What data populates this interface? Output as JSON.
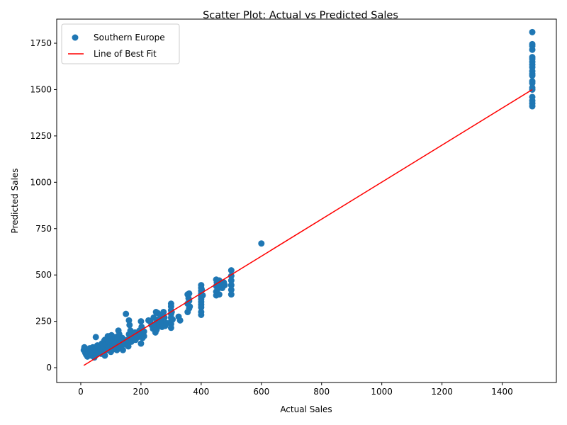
{
  "chart_data": {
    "type": "scatter",
    "title": "Scatter Plot: Actual vs Predicted Sales",
    "xlabel": "Actual Sales",
    "ylabel": "Predicted Sales",
    "xlim": [
      -80,
      1580
    ],
    "ylim": [
      -80,
      1880
    ],
    "xticks": [
      0,
      200,
      400,
      600,
      800,
      1000,
      1200,
      1400
    ],
    "yticks": [
      0,
      250,
      500,
      750,
      1000,
      1250,
      1500,
      1750
    ],
    "grid": false,
    "legend_position": "top-left",
    "series": [
      {
        "name": "Southern Europe",
        "kind": "scatter",
        "color": "#1f77b4",
        "points": [
          [
            10,
            95
          ],
          [
            12,
            110
          ],
          [
            15,
            80
          ],
          [
            18,
            70
          ],
          [
            20,
            100
          ],
          [
            22,
            60
          ],
          [
            25,
            90
          ],
          [
            28,
            75
          ],
          [
            30,
            105
          ],
          [
            32,
            85
          ],
          [
            35,
            65
          ],
          [
            38,
            95
          ],
          [
            40,
            110
          ],
          [
            42,
            80
          ],
          [
            45,
            55
          ],
          [
            48,
            100
          ],
          [
            50,
            90
          ],
          [
            50,
            165
          ],
          [
            52,
            70
          ],
          [
            55,
            120
          ],
          [
            58,
            95
          ],
          [
            60,
            80
          ],
          [
            62,
            110
          ],
          [
            65,
            100
          ],
          [
            68,
            75
          ],
          [
            70,
            130
          ],
          [
            72,
            90
          ],
          [
            75,
            115
          ],
          [
            78,
            145
          ],
          [
            80,
            65
          ],
          [
            80,
            150
          ],
          [
            82,
            100
          ],
          [
            85,
            125
          ],
          [
            88,
            95
          ],
          [
            90,
            170
          ],
          [
            92,
            140
          ],
          [
            95,
            110
          ],
          [
            98,
            160
          ],
          [
            100,
            130
          ],
          [
            100,
            85
          ],
          [
            102,
            175
          ],
          [
            105,
            120
          ],
          [
            108,
            150
          ],
          [
            110,
            100
          ],
          [
            112,
            140
          ],
          [
            115,
            165
          ],
          [
            118,
            130
          ],
          [
            120,
            95
          ],
          [
            122,
            155
          ],
          [
            125,
            200
          ],
          [
            125,
            110
          ],
          [
            128,
            180
          ],
          [
            130,
            140
          ],
          [
            135,
            120
          ],
          [
            138,
            160
          ],
          [
            140,
            95
          ],
          [
            145,
            135
          ],
          [
            150,
            290
          ],
          [
            150,
            125
          ],
          [
            155,
            150
          ],
          [
            158,
            115
          ],
          [
            160,
            255
          ],
          [
            160,
            180
          ],
          [
            162,
            230
          ],
          [
            165,
            200
          ],
          [
            168,
            140
          ],
          [
            170,
            170
          ],
          [
            175,
            160
          ],
          [
            180,
            190
          ],
          [
            182,
            150
          ],
          [
            185,
            175
          ],
          [
            190,
            165
          ],
          [
            195,
            200
          ],
          [
            200,
            250
          ],
          [
            200,
            180
          ],
          [
            200,
            130
          ],
          [
            202,
            220
          ],
          [
            205,
            160
          ],
          [
            210,
            195
          ],
          [
            210,
            170
          ],
          [
            225,
            255
          ],
          [
            230,
            250
          ],
          [
            235,
            230
          ],
          [
            240,
            210
          ],
          [
            242,
            270
          ],
          [
            245,
            225
          ],
          [
            248,
            190
          ],
          [
            250,
            300
          ],
          [
            250,
            240
          ],
          [
            252,
            205
          ],
          [
            255,
            295
          ],
          [
            258,
            260
          ],
          [
            260,
            230
          ],
          [
            265,
            280
          ],
          [
            268,
            250
          ],
          [
            270,
            220
          ],
          [
            275,
            300
          ],
          [
            278,
            270
          ],
          [
            280,
            225
          ],
          [
            285,
            240
          ],
          [
            300,
            345
          ],
          [
            300,
            330
          ],
          [
            300,
            310
          ],
          [
            300,
            290
          ],
          [
            300,
            270
          ],
          [
            300,
            250
          ],
          [
            300,
            235
          ],
          [
            300,
            215
          ],
          [
            302,
            300
          ],
          [
            305,
            260
          ],
          [
            325,
            275
          ],
          [
            330,
            255
          ],
          [
            355,
            395
          ],
          [
            355,
            345
          ],
          [
            355,
            300
          ],
          [
            358,
            375
          ],
          [
            360,
            400
          ],
          [
            360,
            360
          ],
          [
            360,
            320
          ],
          [
            362,
            330
          ],
          [
            400,
            445
          ],
          [
            400,
            430
          ],
          [
            400,
            415
          ],
          [
            400,
            400
          ],
          [
            400,
            385
          ],
          [
            400,
            370
          ],
          [
            400,
            355
          ],
          [
            400,
            340
          ],
          [
            400,
            325
          ],
          [
            400,
            300
          ],
          [
            400,
            285
          ],
          [
            402,
            420
          ],
          [
            405,
            390
          ],
          [
            450,
            475
          ],
          [
            450,
            440
          ],
          [
            450,
            410
          ],
          [
            450,
            390
          ],
          [
            452,
            460
          ],
          [
            455,
            425
          ],
          [
            460,
            470
          ],
          [
            460,
            395
          ],
          [
            465,
            450
          ],
          [
            470,
            430
          ],
          [
            475,
            460
          ],
          [
            478,
            445
          ],
          [
            500,
            525
          ],
          [
            500,
            495
          ],
          [
            500,
            470
          ],
          [
            500,
            445
          ],
          [
            500,
            420
          ],
          [
            500,
            395
          ],
          [
            600,
            670
          ],
          [
            1500,
            1810
          ],
          [
            1500,
            1745
          ],
          [
            1500,
            1735
          ],
          [
            1500,
            1715
          ],
          [
            1500,
            1675
          ],
          [
            1500,
            1665
          ],
          [
            1500,
            1650
          ],
          [
            1500,
            1635
          ],
          [
            1500,
            1620
          ],
          [
            1500,
            1600
          ],
          [
            1500,
            1585
          ],
          [
            1500,
            1575
          ],
          [
            1500,
            1545
          ],
          [
            1500,
            1535
          ],
          [
            1500,
            1510
          ],
          [
            1500,
            1500
          ],
          [
            1500,
            1460
          ],
          [
            1500,
            1440
          ],
          [
            1500,
            1425
          ],
          [
            1500,
            1410
          ]
        ]
      },
      {
        "name": "Line of Best Fit",
        "kind": "line",
        "color": "#ff0000",
        "points": [
          [
            10,
            12
          ],
          [
            1500,
            1500
          ]
        ]
      }
    ]
  }
}
